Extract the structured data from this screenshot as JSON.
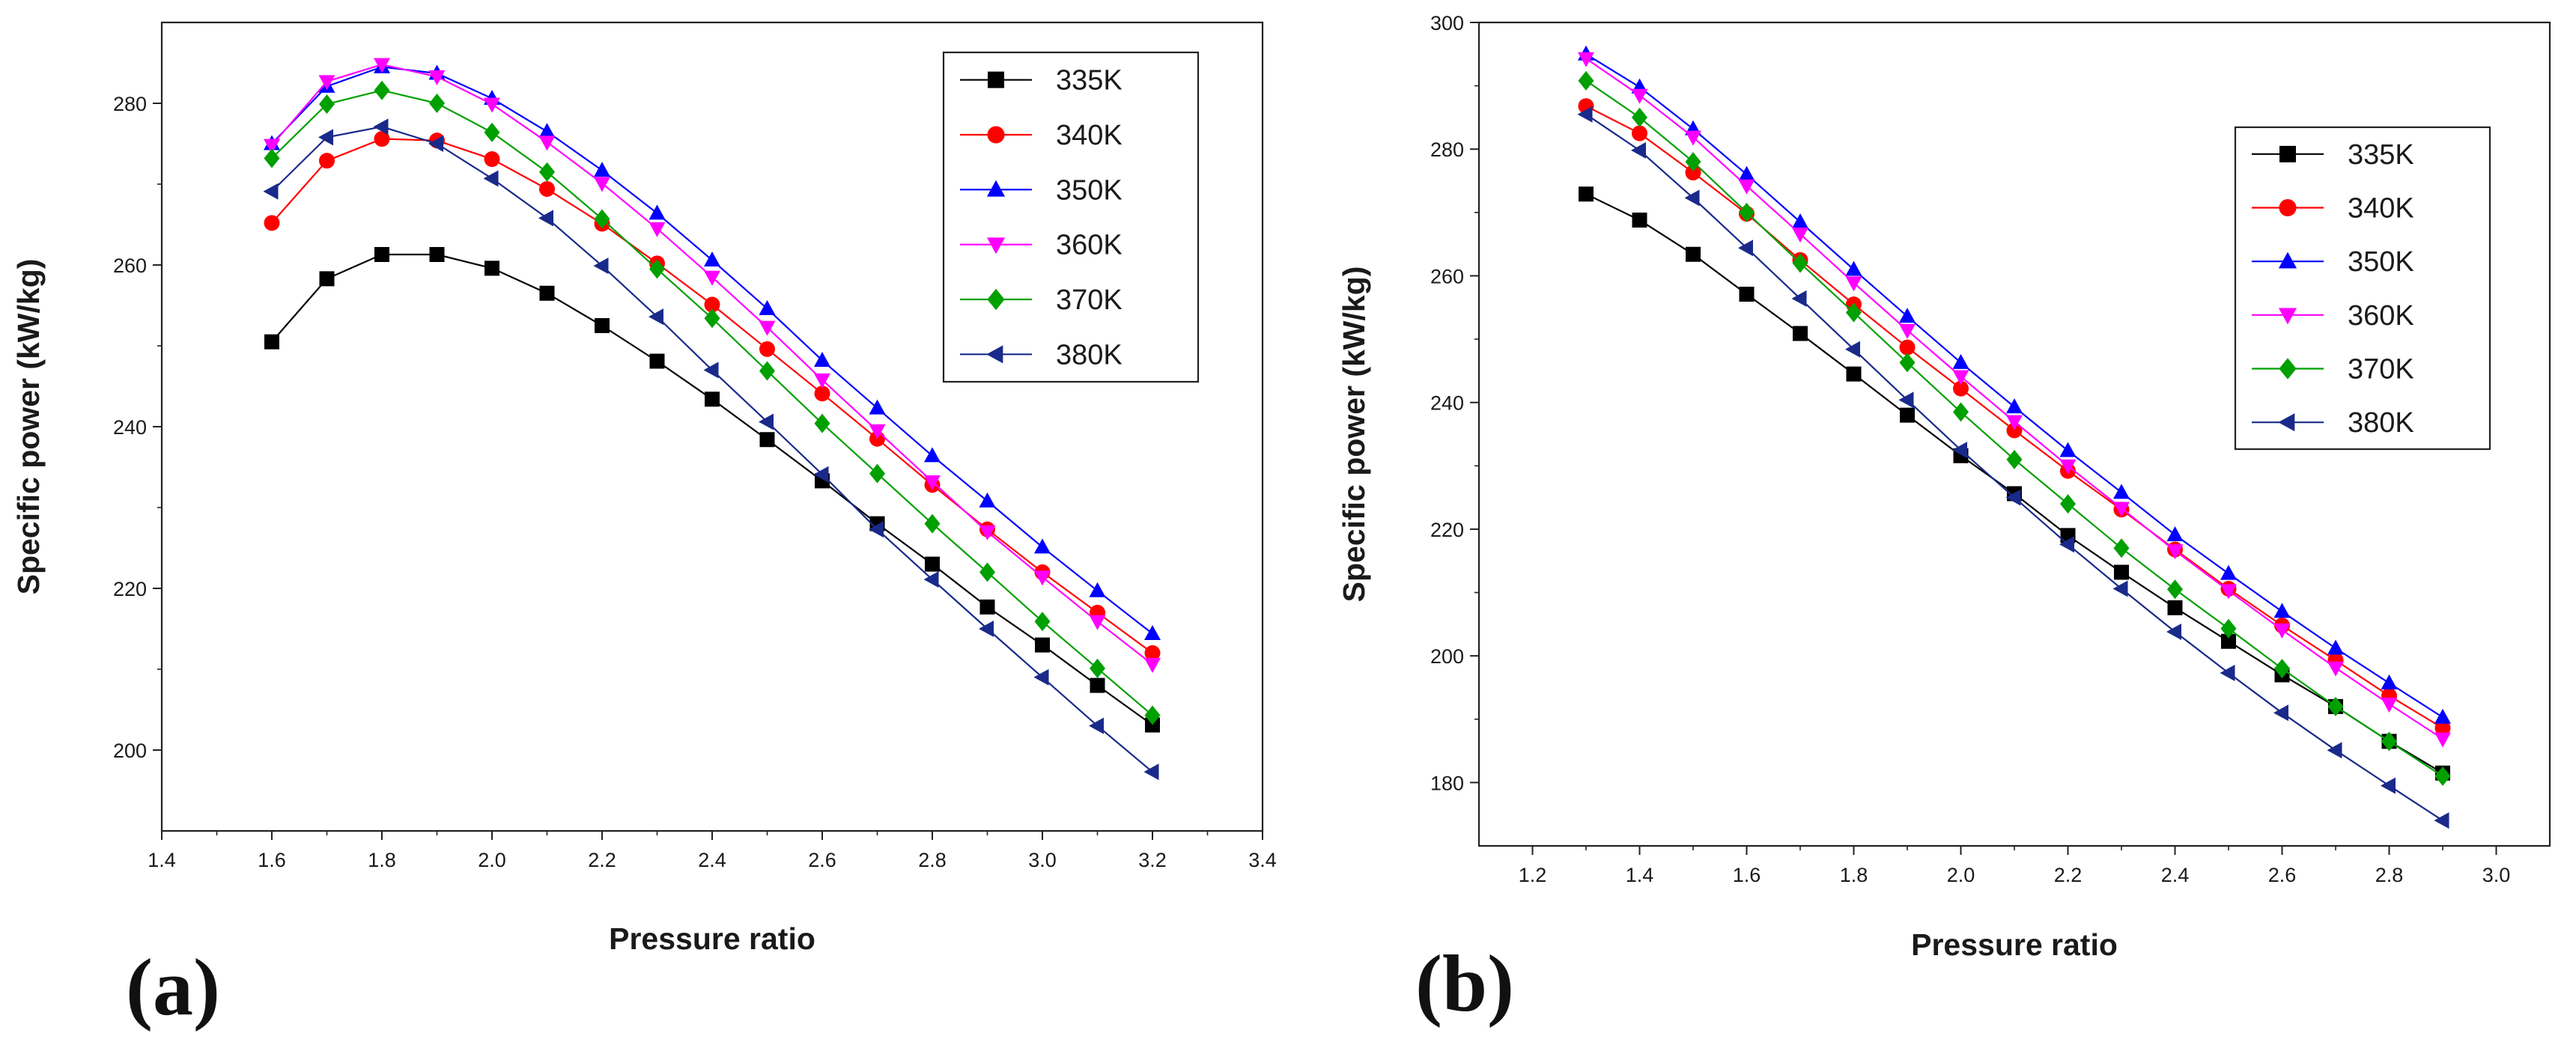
{
  "chart_data": [
    {
      "type": "line",
      "panel_label": "(a)",
      "xlabel": "Pressure ratio",
      "ylabel": "Specific power (kW/kg)",
      "xlim": [
        1.4,
        3.4
      ],
      "ylim": [
        190,
        290
      ],
      "xticks": [
        "1.4",
        "1.6",
        "1.8",
        "2.0",
        "2.2",
        "2.4",
        "2.6",
        "2.8",
        "3.0",
        "3.2",
        "3.4"
      ],
      "yticks": [
        "200",
        "220",
        "240",
        "260",
        "280"
      ],
      "legend_position": "top-right",
      "x": [
        1.6,
        1.7,
        1.8,
        1.9,
        2.0,
        2.1,
        2.2,
        2.3,
        2.4,
        2.5,
        2.6,
        2.7,
        2.8,
        2.9,
        3.0,
        3.1,
        3.2
      ],
      "series": [
        {
          "name": "335K",
          "color": "#000000",
          "marker": "square",
          "values": [
            250.5,
            258.3,
            261.3,
            261.3,
            259.6,
            256.5,
            252.5,
            248.1,
            243.4,
            238.4,
            233.3,
            228.0,
            223.0,
            217.7,
            213.0,
            208.0,
            203.1
          ]
        },
        {
          "name": "340K",
          "color": "#ff0000",
          "marker": "circle",
          "values": [
            265.2,
            272.9,
            275.6,
            275.4,
            273.1,
            269.4,
            265.1,
            260.2,
            255.1,
            249.6,
            244.1,
            238.5,
            232.8,
            227.3,
            222.0,
            217.0,
            212.0
          ]
        },
        {
          "name": "350K",
          "color": "#0000ff",
          "marker": "triangle-up",
          "values": [
            275.0,
            282.1,
            284.5,
            283.7,
            280.6,
            276.5,
            271.7,
            266.4,
            260.6,
            254.6,
            248.2,
            242.3,
            236.4,
            230.8,
            225.1,
            219.7,
            214.4
          ]
        },
        {
          "name": "360K",
          "color": "#ff00ff",
          "marker": "triangle-down",
          "values": [
            274.8,
            282.7,
            284.8,
            283.3,
            279.9,
            275.2,
            270.1,
            264.5,
            258.5,
            252.3,
            245.8,
            239.5,
            233.2,
            227.0,
            221.4,
            215.9,
            210.6
          ]
        },
        {
          "name": "370K",
          "color": "#00a000",
          "marker": "diamond",
          "values": [
            273.2,
            279.9,
            281.6,
            280.0,
            276.4,
            271.5,
            265.7,
            259.5,
            253.4,
            246.9,
            240.4,
            234.2,
            228.0,
            222.0,
            215.9,
            210.1,
            204.3
          ]
        },
        {
          "name": "380K",
          "color": "#1a2a8a",
          "marker": "triangle-left",
          "values": [
            269.1,
            275.8,
            277.1,
            275.0,
            270.7,
            265.8,
            259.9,
            253.6,
            247.0,
            240.6,
            234.1,
            227.3,
            221.1,
            215.0,
            209.0,
            203.0,
            197.3
          ]
        }
      ]
    },
    {
      "type": "line",
      "panel_label": "(b)",
      "xlabel": "Pressure ratio",
      "ylabel": "Specific power (kW/kg)",
      "xlim": [
        1.1,
        3.1
      ],
      "ylim": [
        170,
        300
      ],
      "xticks": [
        "1.2",
        "1.4",
        "1.6",
        "1.8",
        "2.0",
        "2.2",
        "2.4",
        "2.6",
        "2.8",
        "3.0"
      ],
      "yticks": [
        "180",
        "200",
        "220",
        "240",
        "260",
        "280",
        "300"
      ],
      "legend_position": "top-right",
      "x": [
        1.3,
        1.4,
        1.5,
        1.6,
        1.7,
        1.8,
        1.9,
        2.0,
        2.1,
        2.2,
        2.3,
        2.4,
        2.5,
        2.6,
        2.7,
        2.8,
        2.9
      ],
      "series": [
        {
          "name": "335K",
          "color": "#000000",
          "marker": "square",
          "values": [
            272.9,
            268.8,
            263.4,
            257.1,
            250.9,
            244.5,
            238.0,
            231.6,
            225.6,
            219.0,
            213.2,
            207.6,
            202.3,
            197.0,
            192.0,
            186.5,
            181.5
          ]
        },
        {
          "name": "340K",
          "color": "#ff0000",
          "marker": "circle",
          "values": [
            286.8,
            282.5,
            276.3,
            269.8,
            262.5,
            255.5,
            248.7,
            242.2,
            235.6,
            229.2,
            223.1,
            216.8,
            210.6,
            204.8,
            199.3,
            193.7,
            188.6
          ]
        },
        {
          "name": "350K",
          "color": "#0000ff",
          "marker": "triangle-up",
          "values": [
            295.0,
            289.8,
            283.2,
            276.0,
            268.5,
            261.0,
            253.6,
            246.3,
            239.3,
            232.4,
            225.8,
            219.1,
            213.0,
            207.0,
            201.2,
            195.7,
            190.3
          ]
        },
        {
          "name": "360K",
          "color": "#ff00ff",
          "marker": "triangle-down",
          "values": [
            294.3,
            288.5,
            281.9,
            274.2,
            266.6,
            258.9,
            251.4,
            244.1,
            237.0,
            230.0,
            223.3,
            216.6,
            210.3,
            204.1,
            198.1,
            192.4,
            186.9
          ]
        },
        {
          "name": "370K",
          "color": "#00a000",
          "marker": "diamond",
          "values": [
            290.8,
            285.0,
            278.0,
            270.0,
            262.0,
            254.2,
            246.3,
            238.5,
            231.0,
            224.0,
            217.0,
            210.5,
            204.3,
            198.0,
            192.0,
            186.5,
            181.0
          ]
        },
        {
          "name": "380K",
          "color": "#1a2a8a",
          "marker": "triangle-left",
          "values": [
            285.5,
            279.8,
            272.3,
            264.4,
            256.4,
            248.4,
            240.4,
            232.5,
            225.0,
            217.6,
            210.6,
            203.8,
            197.3,
            191.0,
            185.1,
            179.5,
            174.0
          ]
        }
      ]
    }
  ]
}
